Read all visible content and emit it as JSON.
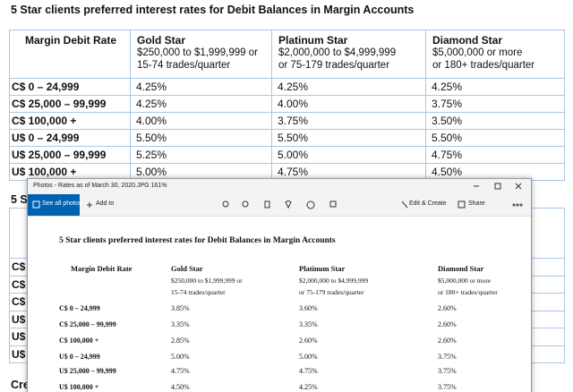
{
  "doc": {
    "title": "5 Star clients preferred interest rates for Debit Balances in Margin Accounts",
    "table": {
      "header": [
        "Margin Debit Rate",
        {
          "name": "Gold Star",
          "lines": [
            "$250,000 to $1,999,999 or",
            "15-74 trades/quarter"
          ]
        },
        {
          "name": "Platinum Star",
          "lines": [
            "$2,000,000 to $4,999,999",
            "or 75-179 trades/quarter"
          ]
        },
        {
          "name": "Diamond Star",
          "lines": [
            "$5,000,000 or more",
            "or 180+ trades/quarter"
          ]
        }
      ],
      "rows": [
        [
          "C$ 0 – 24,999",
          "4.25%",
          "4.25%",
          "4.25%"
        ],
        [
          "C$ 25,000 – 99,999",
          "4.25%",
          "4.00%",
          "3.75%"
        ],
        [
          "C$ 100,000 +",
          "4.00%",
          "3.75%",
          "3.50%"
        ],
        [
          "U$ 0 – 24,999",
          "5.50%",
          "5.50%",
          "5.50%"
        ],
        [
          "U$ 25,000 – 99,999",
          "5.25%",
          "5.00%",
          "4.75%"
        ],
        [
          "U$ 100,000 +",
          "5.00%",
          "4.75%",
          "4.50%"
        ]
      ]
    },
    "second_title_fragment": "5 S",
    "second_row_fragments": [
      "C$",
      "C$",
      "C$",
      "U$",
      "U$",
      "U$"
    ],
    "footer_fragment": "Cre"
  },
  "window": {
    "title": "Photos - Rates as of March 30, 2020.JPG   161%",
    "see_all": "See all photos",
    "add_to": "Add to",
    "edit_create": "Edit & Create",
    "share": "Share",
    "image": {
      "title": "5 Star clients preferred interest rates for Debit Balances in Margin Accounts",
      "header": [
        "Margin Debit Rate",
        {
          "name": "Gold Star",
          "lines": [
            "$250,000 to $1,999,999 or",
            "15-74 trades/quarter"
          ]
        },
        {
          "name": "Platinum Star",
          "lines": [
            "$2,000,000 to $4,999,999",
            "or 75-179 trades/quarter"
          ]
        },
        {
          "name": "Diamond Star",
          "lines": [
            "$5,000,000 or more",
            "or 180+ trades/quarter"
          ]
        }
      ],
      "rows": [
        [
          "C$ 0 – 24,999",
          "3.85%",
          "3.60%",
          "2.60%"
        ],
        [
          "C$ 25,000 – 99,999",
          "3.35%",
          "3.35%",
          "2.60%"
        ],
        [
          "C$ 100,000 +",
          "2.85%",
          "2.60%",
          "2.60%"
        ],
        [
          "U$ 0 – 24,999",
          "5.00%",
          "5.00%",
          "3.75%"
        ],
        [
          "U$ 25,000 – 99,999",
          "4.75%",
          "4.75%",
          "3.75%"
        ],
        [
          "U$ 100,000 +",
          "4.50%",
          "4.25%",
          "3.75%"
        ]
      ]
    }
  }
}
